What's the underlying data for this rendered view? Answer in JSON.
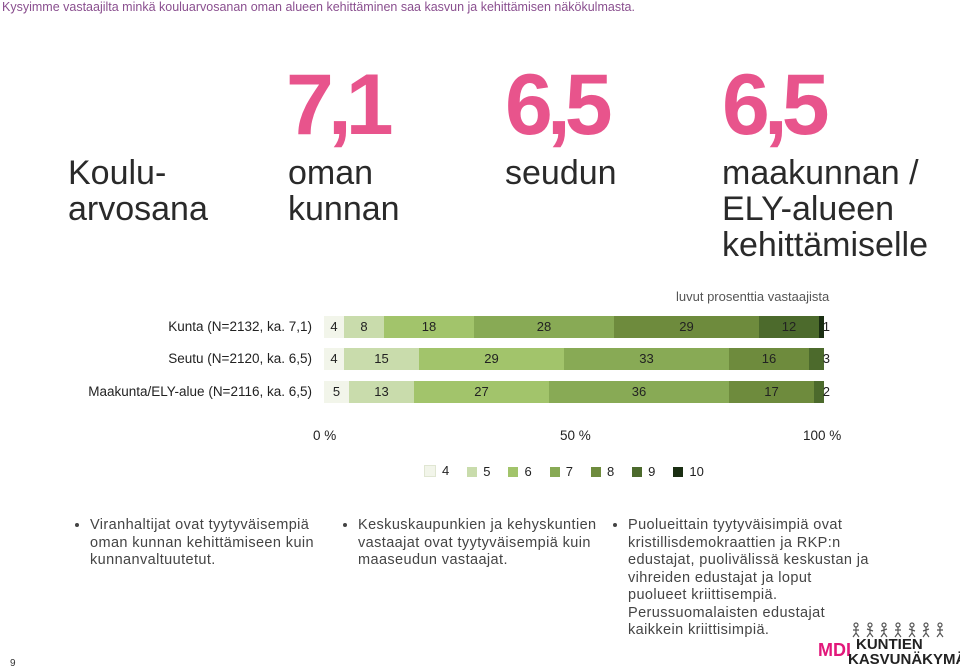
{
  "header": {
    "question": "Kysyimme vastaajilta minkä kouluarvosanan oman alueen kehittäminen saa kasvun ja kehittämisen näkökulmasta."
  },
  "grades": {
    "title_line1": "Koulu-",
    "title_line2": "arvosana",
    "items": [
      {
        "value": "7,1",
        "label_line1": "oman",
        "label_line2": "kunnan",
        "label_line3": ""
      },
      {
        "value": "6,5",
        "label_line1": "seudun",
        "label_line2": "",
        "label_line3": ""
      },
      {
        "value": "6,5",
        "label_line1": "maakunnan /",
        "label_line2": "ELY-alueen",
        "label_line3": "kehittämiselle"
      }
    ]
  },
  "chart_data": {
    "type": "bar",
    "orientation": "horizontal",
    "stacked": true,
    "unit_note": "luvut prosenttia vastaajista",
    "categories": [
      "Kunta (N=2132, ka. 7,1)",
      "Seutu (N=2120, ka. 6,5)",
      "Maakunta/ELY-alue (N=2116, ka. 6,5)"
    ],
    "series": [
      {
        "name": "4",
        "color": "#f2f5ea",
        "values": [
          4,
          4,
          5
        ]
      },
      {
        "name": "5",
        "color": "#c9dcac",
        "values": [
          8,
          15,
          13
        ]
      },
      {
        "name": "6",
        "color": "#a2c46b",
        "values": [
          18,
          29,
          27
        ]
      },
      {
        "name": "7",
        "color": "#88aa55",
        "values": [
          28,
          33,
          36
        ]
      },
      {
        "name": "8",
        "color": "#6e8b3d",
        "values": [
          29,
          16,
          17
        ]
      },
      {
        "name": "9",
        "color": "#4c6a2c",
        "values": [
          12,
          3,
          2
        ]
      },
      {
        "name": "10",
        "color": "#1a2e12",
        "values": [
          1,
          0,
          0
        ]
      }
    ],
    "xlim": [
      0,
      100
    ],
    "xticks": [
      "0 %",
      "50 %",
      "100 %"
    ],
    "legend_position": "bottom"
  },
  "bullets": [
    {
      "text": "Viranhaltijat ovat tyytyväisempiä oman kunnan kehittämiseen kuin kunnanvaltuutetut."
    },
    {
      "text": "Keskuskaupunkien ja kehyskuntien vastaajat ovat tyytyväisempiä kuin maaseudun vastaajat."
    },
    {
      "text": "Puolueittain tyytyväisimpiä ovat kristillisdemokraattien ja RKP:n edustajat, puolivälissä keskustan ja vihreiden edustajat ja loput puolueet kriittisempiä. Perussuomalaisten edustajat kaikkein kriittisimpiä."
    }
  ],
  "footer": {
    "page_number": "9",
    "logo_mdi": "MDI",
    "logo_line1": "KUNTIEN",
    "logo_line2": "KASVUNÄKYMÄT"
  }
}
